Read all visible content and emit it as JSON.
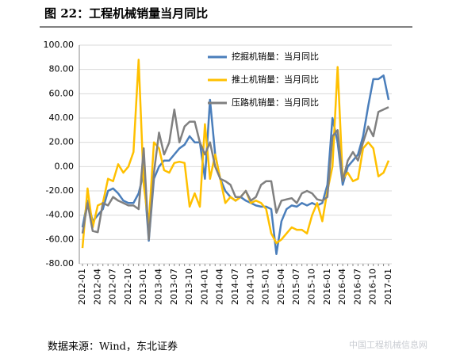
{
  "chart_data": {
    "type": "line",
    "title": "图 22：工程机械销量当月同比",
    "source": "数据来源：Wind，东北证券",
    "watermark": "中国工程机械信息网",
    "categories": [
      "2012-01",
      null,
      null,
      "2012-04",
      null,
      null,
      "2012-07",
      null,
      null,
      "2012-10",
      null,
      null,
      "2013-01",
      null,
      null,
      "2013-04",
      null,
      null,
      "2013-07",
      null,
      null,
      "2013-10",
      null,
      null,
      "2014-01",
      null,
      null,
      "2014-04",
      null,
      null,
      "2014-07",
      null,
      null,
      "2014-10",
      null,
      null,
      "2015-01",
      null,
      null,
      "2015-04",
      null,
      null,
      "2015-07",
      null,
      null,
      "2015-10",
      null,
      null,
      "2016-01",
      null,
      null,
      "2016-04",
      null,
      null,
      "2016-07",
      null,
      null,
      "2016-10",
      null,
      null,
      "2017-01"
    ],
    "series": [
      {
        "name": "挖掘机销量：当月同比",
        "color": "#4a7ebb",
        "values": [
          -50,
          -28,
          -45,
          -40,
          -35,
          -20,
          -18,
          -22,
          -28,
          -30,
          -30,
          -22,
          -5,
          -61,
          -10,
          0,
          5,
          5,
          10,
          15,
          18,
          25,
          20,
          20,
          -10,
          55,
          10,
          -10,
          -20,
          -25,
          -28,
          -25,
          -28,
          -30,
          -32,
          -33,
          -33,
          -35,
          -72,
          -45,
          -35,
          -32,
          -33,
          -30,
          -32,
          -30,
          -32,
          -30,
          -15,
          40,
          20,
          -15,
          0,
          5,
          10,
          25,
          50,
          72,
          72,
          75,
          55
        ]
      },
      {
        "name": "推土机销量：当月同比",
        "color": "#ffc000",
        "values": [
          -67,
          -18,
          -50,
          -32,
          -30,
          -10,
          -12,
          2,
          -5,
          0,
          12,
          88,
          -15,
          -47,
          20,
          15,
          -3,
          -5,
          3,
          4,
          3,
          -33,
          -22,
          -33,
          35,
          -10,
          10,
          -10,
          -30,
          -25,
          -28,
          -25,
          -20,
          -30,
          -28,
          -30,
          -35,
          -55,
          -63,
          -60,
          -55,
          -50,
          -52,
          -52,
          -55,
          -40,
          -30,
          -45,
          -20,
          0,
          82,
          -10,
          -5,
          -12,
          -10,
          15,
          20,
          15,
          -8,
          -5,
          5
        ]
      },
      {
        "name": "压路机销量：当月同比",
        "color": "#808080",
        "values": [
          -55,
          -30,
          -53,
          -54,
          -30,
          -32,
          -25,
          -28,
          -30,
          -32,
          -32,
          -35,
          15,
          -60,
          -5,
          28,
          10,
          20,
          47,
          20,
          33,
          37,
          37,
          20,
          10,
          20,
          0,
          -10,
          -12,
          -15,
          -25,
          -25,
          -20,
          -28,
          -25,
          -15,
          -12,
          -12,
          -38,
          -28,
          -27,
          -26,
          -30,
          -22,
          -20,
          -22,
          -27,
          -28,
          -25,
          25,
          30,
          -12,
          5,
          12,
          5,
          20,
          33,
          25,
          45,
          47,
          49
        ]
      }
    ],
    "ylim": [
      -80,
      100
    ],
    "yticks": [
      {
        "value": -80,
        "label": "-80.00"
      },
      {
        "value": -60,
        "label": "-60.00"
      },
      {
        "value": -40,
        "label": "-40.00"
      },
      {
        "value": -20,
        "label": "-20.00"
      },
      {
        "value": 0,
        "label": "0.00"
      },
      {
        "value": 20,
        "label": "20.00"
      },
      {
        "value": 40,
        "label": "40.00"
      },
      {
        "value": 60,
        "label": "60.00"
      },
      {
        "value": 80,
        "label": "80.00"
      },
      {
        "value": 100,
        "label": "100.00"
      }
    ],
    "grid": true,
    "legend": "upper right"
  }
}
